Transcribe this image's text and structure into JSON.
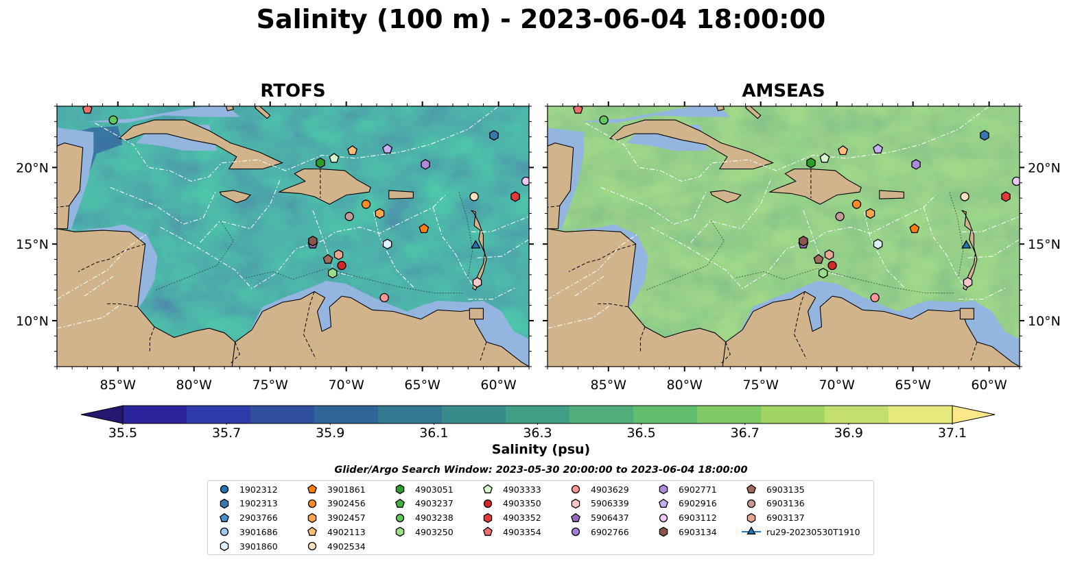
{
  "title": "Salinity (100 m) - 2023-06-04 18:00:00",
  "panels": [
    {
      "title": "RTOFS"
    },
    {
      "title": "AMSEAS"
    }
  ],
  "colorbar": {
    "label": "Salinity (psu)",
    "ticks": [
      "35.5",
      "35.7",
      "35.9",
      "36.1",
      "36.3",
      "36.5",
      "36.7",
      "36.9",
      "37.1"
    ],
    "colors": [
      "#26176e",
      "#2a239c",
      "#2d3aa8",
      "#2e4f9e",
      "#2f6596",
      "#317890",
      "#378b8b",
      "#419d84",
      "#4fae7a",
      "#64be6f",
      "#80ca66",
      "#a0d563",
      "#c3df6e",
      "#e6ea7c",
      "#fbe88b"
    ]
  },
  "search_window": "Glider/Argo Search Window: 2023-05-30 20:00:00 to 2023-06-04 18:00:00",
  "map_colors": {
    "land": "#d2b48c",
    "shelf": "#93b5e0",
    "rtofs_base": "#3f8f8a",
    "amseas_base": "#5fb877"
  },
  "chart_data": [
    {
      "type": "heatmap",
      "title": "RTOFS",
      "variable": "Salinity (100 m)",
      "units": "psu",
      "xlim": [
        -89.0,
        -58.0
      ],
      "ylim": [
        7.0,
        24.0
      ],
      "xticks": [
        "85°W",
        "80°W",
        "75°W",
        "70°W",
        "65°W",
        "60°W"
      ],
      "xtick_values": [
        -85,
        -80,
        -75,
        -70,
        -65,
        -60
      ],
      "yticks": [
        "10°N",
        "15°N",
        "20°N"
      ],
      "ytick_values": [
        10,
        15,
        20
      ],
      "vmin": 35.5,
      "vmax": 37.1,
      "extend": "both",
      "cmap": "summer-like blue-green-yellow"
    },
    {
      "type": "heatmap",
      "title": "AMSEAS",
      "variable": "Salinity (100 m)",
      "units": "psu",
      "xlim": [
        -89.0,
        -58.0
      ],
      "ylim": [
        7.0,
        24.0
      ],
      "xticks": [
        "85°W",
        "80°W",
        "75°W",
        "70°W",
        "65°W",
        "60°W"
      ],
      "xtick_values": [
        -85,
        -80,
        -75,
        -70,
        -65,
        -60
      ],
      "yticks": [
        "10°N",
        "15°N",
        "20°N"
      ],
      "ytick_values": [
        10,
        15,
        20
      ],
      "vmin": 35.5,
      "vmax": 37.1,
      "extend": "both"
    }
  ],
  "platforms": [
    {
      "id": "1902312",
      "marker": "circle",
      "color": "#1f77b4",
      "lon": null,
      "lat": null
    },
    {
      "id": "1902313",
      "marker": "hexagon",
      "color": "#3a78b0",
      "lon": -60.3,
      "lat": 22.1
    },
    {
      "id": "2903766",
      "marker": "pentagon",
      "color": "#4a8ed0",
      "lon": null,
      "lat": null
    },
    {
      "id": "3901686",
      "marker": "circle",
      "color": "#9ecae9",
      "lon": null,
      "lat": null
    },
    {
      "id": "3901860",
      "marker": "hexagon",
      "color": "#deefff",
      "lon": -67.3,
      "lat": 15.0
    },
    {
      "id": "3901861",
      "marker": "pentagon",
      "color": "#ff7f0e",
      "lon": -64.9,
      "lat": 16.0
    },
    {
      "id": "3902456",
      "marker": "circle",
      "color": "#ff8c2a",
      "lon": -68.7,
      "lat": 17.6
    },
    {
      "id": "3902457",
      "marker": "hexagon",
      "color": "#ffa64d",
      "lon": -67.8,
      "lat": 17.0
    },
    {
      "id": "4902113",
      "marker": "pentagon",
      "color": "#ffbb78",
      "lon": -69.6,
      "lat": 21.1
    },
    {
      "id": "4902534",
      "marker": "circle",
      "color": "#ffe0c0",
      "lon": -61.6,
      "lat": 18.1
    },
    {
      "id": "4903051",
      "marker": "hexagon",
      "color": "#2ca02c",
      "lon": -71.7,
      "lat": 20.3
    },
    {
      "id": "4903237",
      "marker": "pentagon",
      "color": "#45b045",
      "lon": null,
      "lat": null
    },
    {
      "id": "4903238",
      "marker": "circle",
      "color": "#5fc85f",
      "lon": -85.3,
      "lat": 23.1
    },
    {
      "id": "4903250",
      "marker": "hexagon",
      "color": "#98df8a",
      "lon": -70.9,
      "lat": 13.1
    },
    {
      "id": "4903333",
      "marker": "pentagon",
      "color": "#d8f8d0",
      "lon": -70.8,
      "lat": 20.6
    },
    {
      "id": "4903350",
      "marker": "circle",
      "color": "#d62728",
      "lon": -70.3,
      "lat": 13.6
    },
    {
      "id": "4903352",
      "marker": "hexagon",
      "color": "#e03a3a",
      "lon": -58.9,
      "lat": 18.1
    },
    {
      "id": "4903354",
      "marker": "pentagon",
      "color": "#f07070",
      "lon": -87.0,
      "lat": 23.8
    },
    {
      "id": "4903629",
      "marker": "circle",
      "color": "#ff9896",
      "lon": -67.5,
      "lat": 11.5
    },
    {
      "id": "5906339",
      "marker": "hexagon",
      "color": "#ffc8c8",
      "lon": -61.4,
      "lat": 12.5
    },
    {
      "id": "5906437",
      "marker": "pentagon",
      "color": "#9467bd",
      "lon": -72.2,
      "lat": 15.0
    },
    {
      "id": "6902766",
      "marker": "circle",
      "color": "#a77fd6",
      "lon": null,
      "lat": null
    },
    {
      "id": "6902771",
      "marker": "hexagon",
      "color": "#b088dd",
      "lon": -64.8,
      "lat": 20.2
    },
    {
      "id": "6902916",
      "marker": "pentagon",
      "color": "#c5b0f5",
      "lon": -67.3,
      "lat": 21.2
    },
    {
      "id": "6903112",
      "marker": "circle",
      "color": "#eccafa",
      "lon": -58.2,
      "lat": 19.1
    },
    {
      "id": "6903134",
      "marker": "hexagon",
      "color": "#8c564b",
      "lon": -72.2,
      "lat": 15.2
    },
    {
      "id": "6903135",
      "marker": "pentagon",
      "color": "#a26a5c",
      "lon": -71.2,
      "lat": 14.0
    },
    {
      "id": "6903136",
      "marker": "circle",
      "color": "#c49c94",
      "lon": -69.8,
      "lat": 16.8
    },
    {
      "id": "6903137",
      "marker": "hexagon",
      "color": "#e9a68e",
      "lon": -70.5,
      "lat": 14.3
    },
    {
      "id": "ru29-20230530T1910",
      "marker": "triangle",
      "color": "#1f77b4",
      "lon": -61.5,
      "lat": 14.9
    }
  ]
}
